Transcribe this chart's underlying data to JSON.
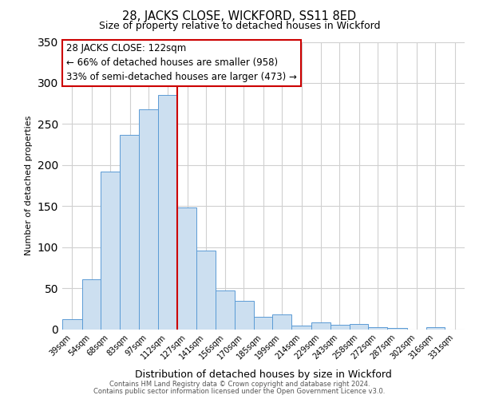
{
  "title": "28, JACKS CLOSE, WICKFORD, SS11 8ED",
  "subtitle": "Size of property relative to detached houses in Wickford",
  "xlabel": "Distribution of detached houses by size in Wickford",
  "ylabel": "Number of detached properties",
  "bar_labels": [
    "39sqm",
    "54sqm",
    "68sqm",
    "83sqm",
    "97sqm",
    "112sqm",
    "127sqm",
    "141sqm",
    "156sqm",
    "170sqm",
    "185sqm",
    "199sqm",
    "214sqm",
    "229sqm",
    "243sqm",
    "258sqm",
    "272sqm",
    "287sqm",
    "302sqm",
    "316sqm",
    "331sqm"
  ],
  "bar_heights": [
    12,
    61,
    192,
    237,
    268,
    285,
    148,
    96,
    47,
    35,
    15,
    18,
    4,
    8,
    5,
    6,
    2,
    1,
    0,
    2
  ],
  "bar_color": "#ccdff0",
  "bar_edge_color": "#5b9bd5",
  "vline_color": "#cc0000",
  "ylim": [
    0,
    350
  ],
  "yticks": [
    0,
    50,
    100,
    150,
    200,
    250,
    300,
    350
  ],
  "annotation_title": "28 JACKS CLOSE: 122sqm",
  "annotation_line1": "← 66% of detached houses are smaller (958)",
  "annotation_line2": "33% of semi-detached houses are larger (473) →",
  "annotation_box_color": "#ffffff",
  "annotation_box_edge": "#cc0000",
  "footer_line1": "Contains HM Land Registry data © Crown copyright and database right 2024.",
  "footer_line2": "Contains public sector information licensed under the Open Government Licence v3.0.",
  "background_color": "#ffffff",
  "grid_color": "#d0d0d0",
  "vline_x_center": 122,
  "bin_centers": [
    39,
    54,
    68,
    83,
    97,
    112,
    127,
    141,
    156,
    170,
    185,
    199,
    214,
    229,
    243,
    258,
    272,
    287,
    302,
    316,
    331
  ]
}
